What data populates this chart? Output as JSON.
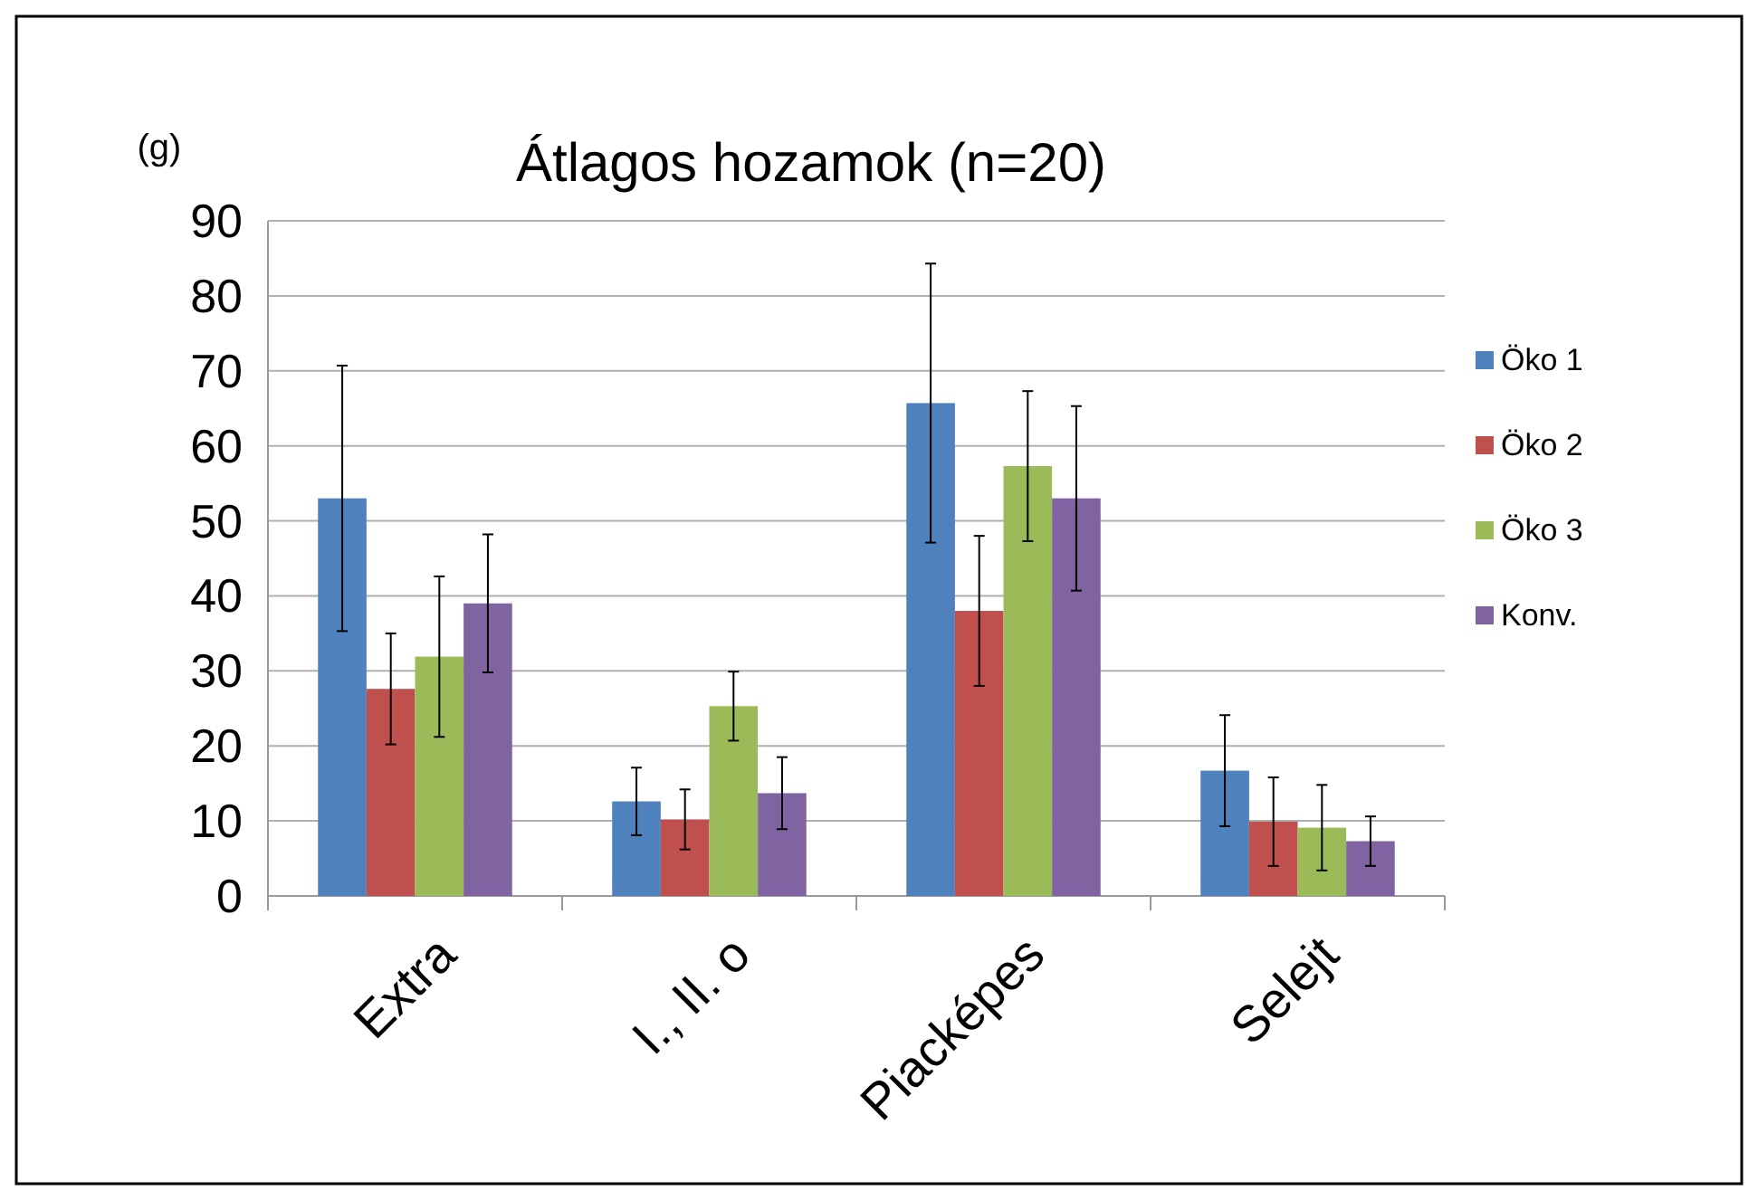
{
  "chart_data": {
    "type": "bar",
    "title": "Átlagos hozamok (n=20)",
    "ylabel": "(g)",
    "categories": [
      "Extra",
      "I., II. o",
      "Piacképes",
      "Selejt"
    ],
    "series": [
      {
        "name": "Öko 1",
        "color": "#4f81bd",
        "values": [
          53.0,
          12.6,
          65.7,
          16.7
        ],
        "errors": [
          17.7,
          4.5,
          18.6,
          7.4
        ]
      },
      {
        "name": "Öko 2",
        "color": "#c0504d",
        "values": [
          27.6,
          10.2,
          38.0,
          9.9
        ],
        "errors": [
          7.4,
          4.0,
          10.0,
          5.9
        ]
      },
      {
        "name": "Öko 3",
        "color": "#9bbb59",
        "values": [
          31.9,
          25.3,
          57.3,
          9.1
        ],
        "errors": [
          10.7,
          4.6,
          10.0,
          5.7
        ]
      },
      {
        "name": "Konv.",
        "color": "#8064a2",
        "values": [
          39.0,
          13.7,
          53.0,
          7.3
        ],
        "errors": [
          9.2,
          4.8,
          12.3,
          3.3
        ]
      }
    ],
    "ylim": [
      0,
      90
    ],
    "yticks": [
      0,
      10,
      20,
      30,
      40,
      50,
      60,
      70,
      80,
      90
    ],
    "grid": "y",
    "legend": "right"
  }
}
